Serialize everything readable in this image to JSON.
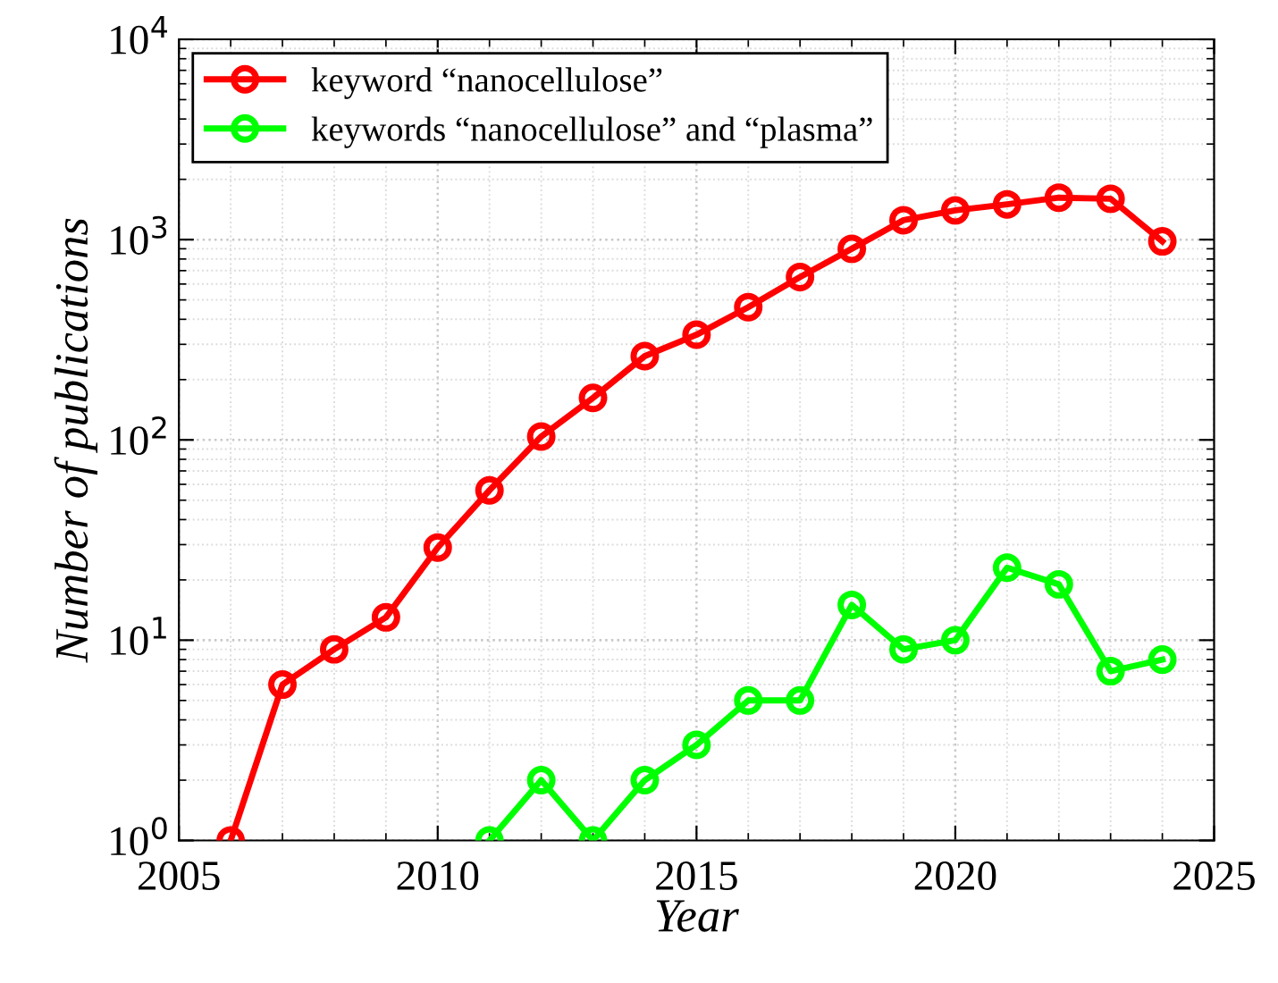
{
  "chart_data": {
    "type": "line",
    "xlabel": "Year",
    "ylabel": "Number of publications",
    "log": "y",
    "grid": true,
    "legend": "top left",
    "marker": "circle",
    "line_style": "solid",
    "xlim": [
      2005,
      2025
    ],
    "xticks": [
      2005,
      2010,
      2015,
      2020,
      2025
    ],
    "ylim": [
      1,
      10000
    ],
    "yticks": [
      {
        "value": 1,
        "label": "10$^{0}$"
      },
      {
        "value": 10,
        "label": "10$^{1}$"
      },
      {
        "value": 100,
        "label": "10$^{2}$"
      },
      {
        "value": 1000,
        "label": "10$^{3}$"
      },
      {
        "value": 10000,
        "label": "10$^{4}$"
      }
    ],
    "series": [
      {
        "name": "keyword “nanocellulose”",
        "color": "#ff0000",
        "x": [
          2006,
          2007,
          2008,
          2009,
          2010,
          2011,
          2012,
          2013,
          2014,
          2015,
          2016,
          2017,
          2018,
          2019,
          2020,
          2021,
          2022,
          2023,
          2024
        ],
        "values": [
          1,
          6,
          9,
          13,
          29,
          56,
          104,
          162,
          262,
          335,
          460,
          650,
          900,
          1250,
          1400,
          1500,
          1620,
          1600,
          980
        ]
      },
      {
        "name": "keywords “nanocellulose” and “plasma”",
        "color": "#00ff00",
        "x": [
          2011,
          2012,
          2013,
          2014,
          2015,
          2016,
          2017,
          2018,
          2019,
          2020,
          2021,
          2022,
          2023,
          2024
        ],
        "values": [
          1,
          2,
          1,
          2,
          3,
          5,
          5,
          15,
          9,
          10,
          23,
          19,
          7,
          8
        ]
      }
    ]
  }
}
